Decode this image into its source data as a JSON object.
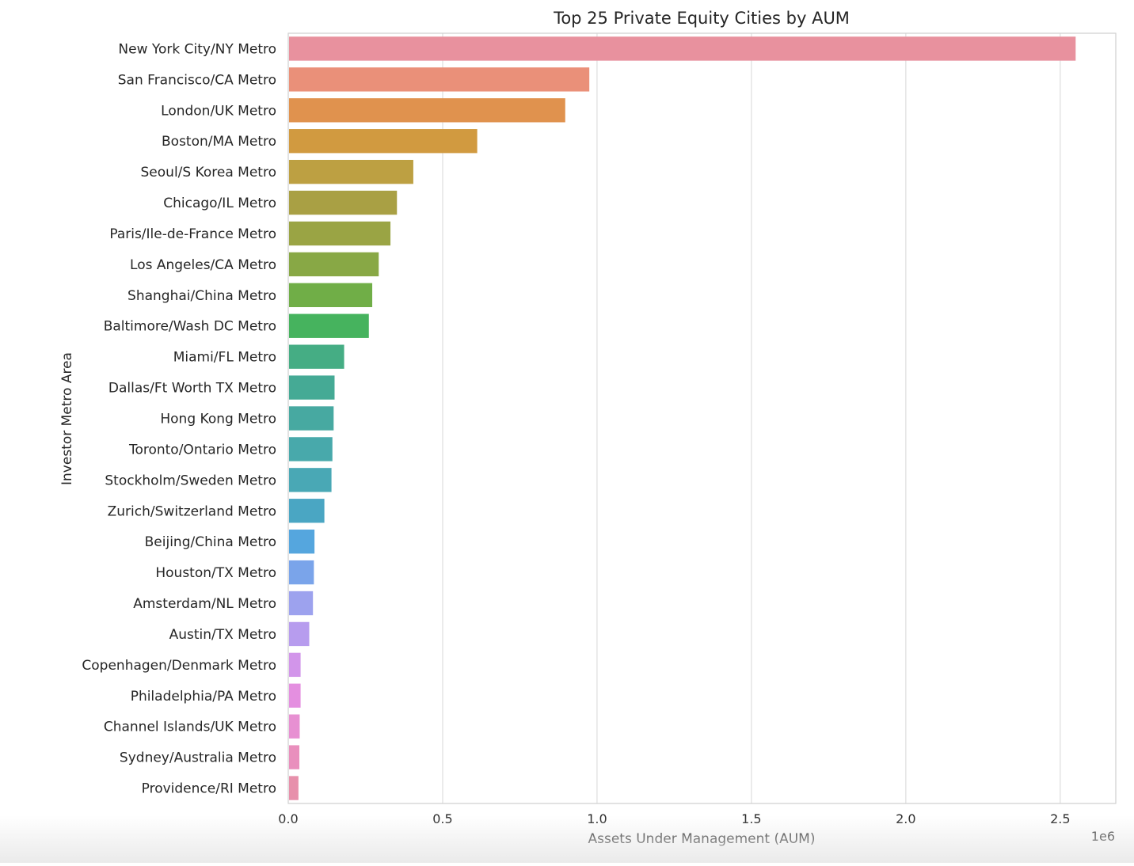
{
  "chart_data": {
    "type": "bar",
    "orientation": "horizontal",
    "title": "Top 25 Private Equity Cities by AUM",
    "xlabel": "Assets Under Management (AUM)",
    "ylabel": "Investor Metro Area",
    "x_offset_label": "1e6",
    "xlim": [
      0,
      2.68
    ],
    "x_scale_note": "values in units of 1e6",
    "xticks": [
      0.0,
      0.5,
      1.0,
      1.5,
      2.0,
      2.5
    ],
    "xtick_labels": [
      "0.0",
      "0.5",
      "1.0",
      "1.5",
      "2.0",
      "2.5"
    ],
    "grid": "vertical",
    "categories": [
      "New York City/NY Metro",
      "San Francisco/CA Metro",
      "London/UK Metro",
      "Boston/MA Metro",
      "Seoul/S Korea Metro",
      "Chicago/IL Metro",
      "Paris/Ile-de-France Metro",
      "Los Angeles/CA Metro",
      "Shanghai/China Metro",
      "Baltimore/Wash DC Metro",
      "Miami/FL Metro",
      "Dallas/Ft Worth TX Metro",
      "Hong Kong Metro",
      "Toronto/Ontario Metro",
      "Stockholm/Sweden Metro",
      "Zurich/Switzerland Metro",
      "Beijing/China Metro",
      "Houston/TX Metro",
      "Amsterdam/NL Metro",
      "Austin/TX Metro",
      "Copenhagen/Denmark Metro",
      "Philadelphia/PA Metro",
      "Channel Islands/UK Metro",
      "Sydney/Australia Metro",
      "Providence/RI Metro"
    ],
    "values": [
      2.55,
      0.975,
      0.897,
      0.612,
      0.405,
      0.352,
      0.331,
      0.293,
      0.272,
      0.261,
      0.181,
      0.15,
      0.147,
      0.143,
      0.14,
      0.117,
      0.085,
      0.083,
      0.08,
      0.068,
      0.04,
      0.04,
      0.037,
      0.036,
      0.033
    ],
    "colors": [
      "#e8919e",
      "#ea9079",
      "#e0924e",
      "#d19a40",
      "#bda042",
      "#a9a044",
      "#9aa444",
      "#88a845",
      "#70ae47",
      "#46b35e",
      "#45ad84",
      "#45aa95",
      "#47a9a1",
      "#48a9ab",
      "#49a8b5",
      "#4aa6c3",
      "#55a6de",
      "#7aa4ea",
      "#9da2ee",
      "#b79cee",
      "#d295ea",
      "#e48fe0",
      "#e790d2",
      "#e98fbd",
      "#e790ab"
    ]
  }
}
